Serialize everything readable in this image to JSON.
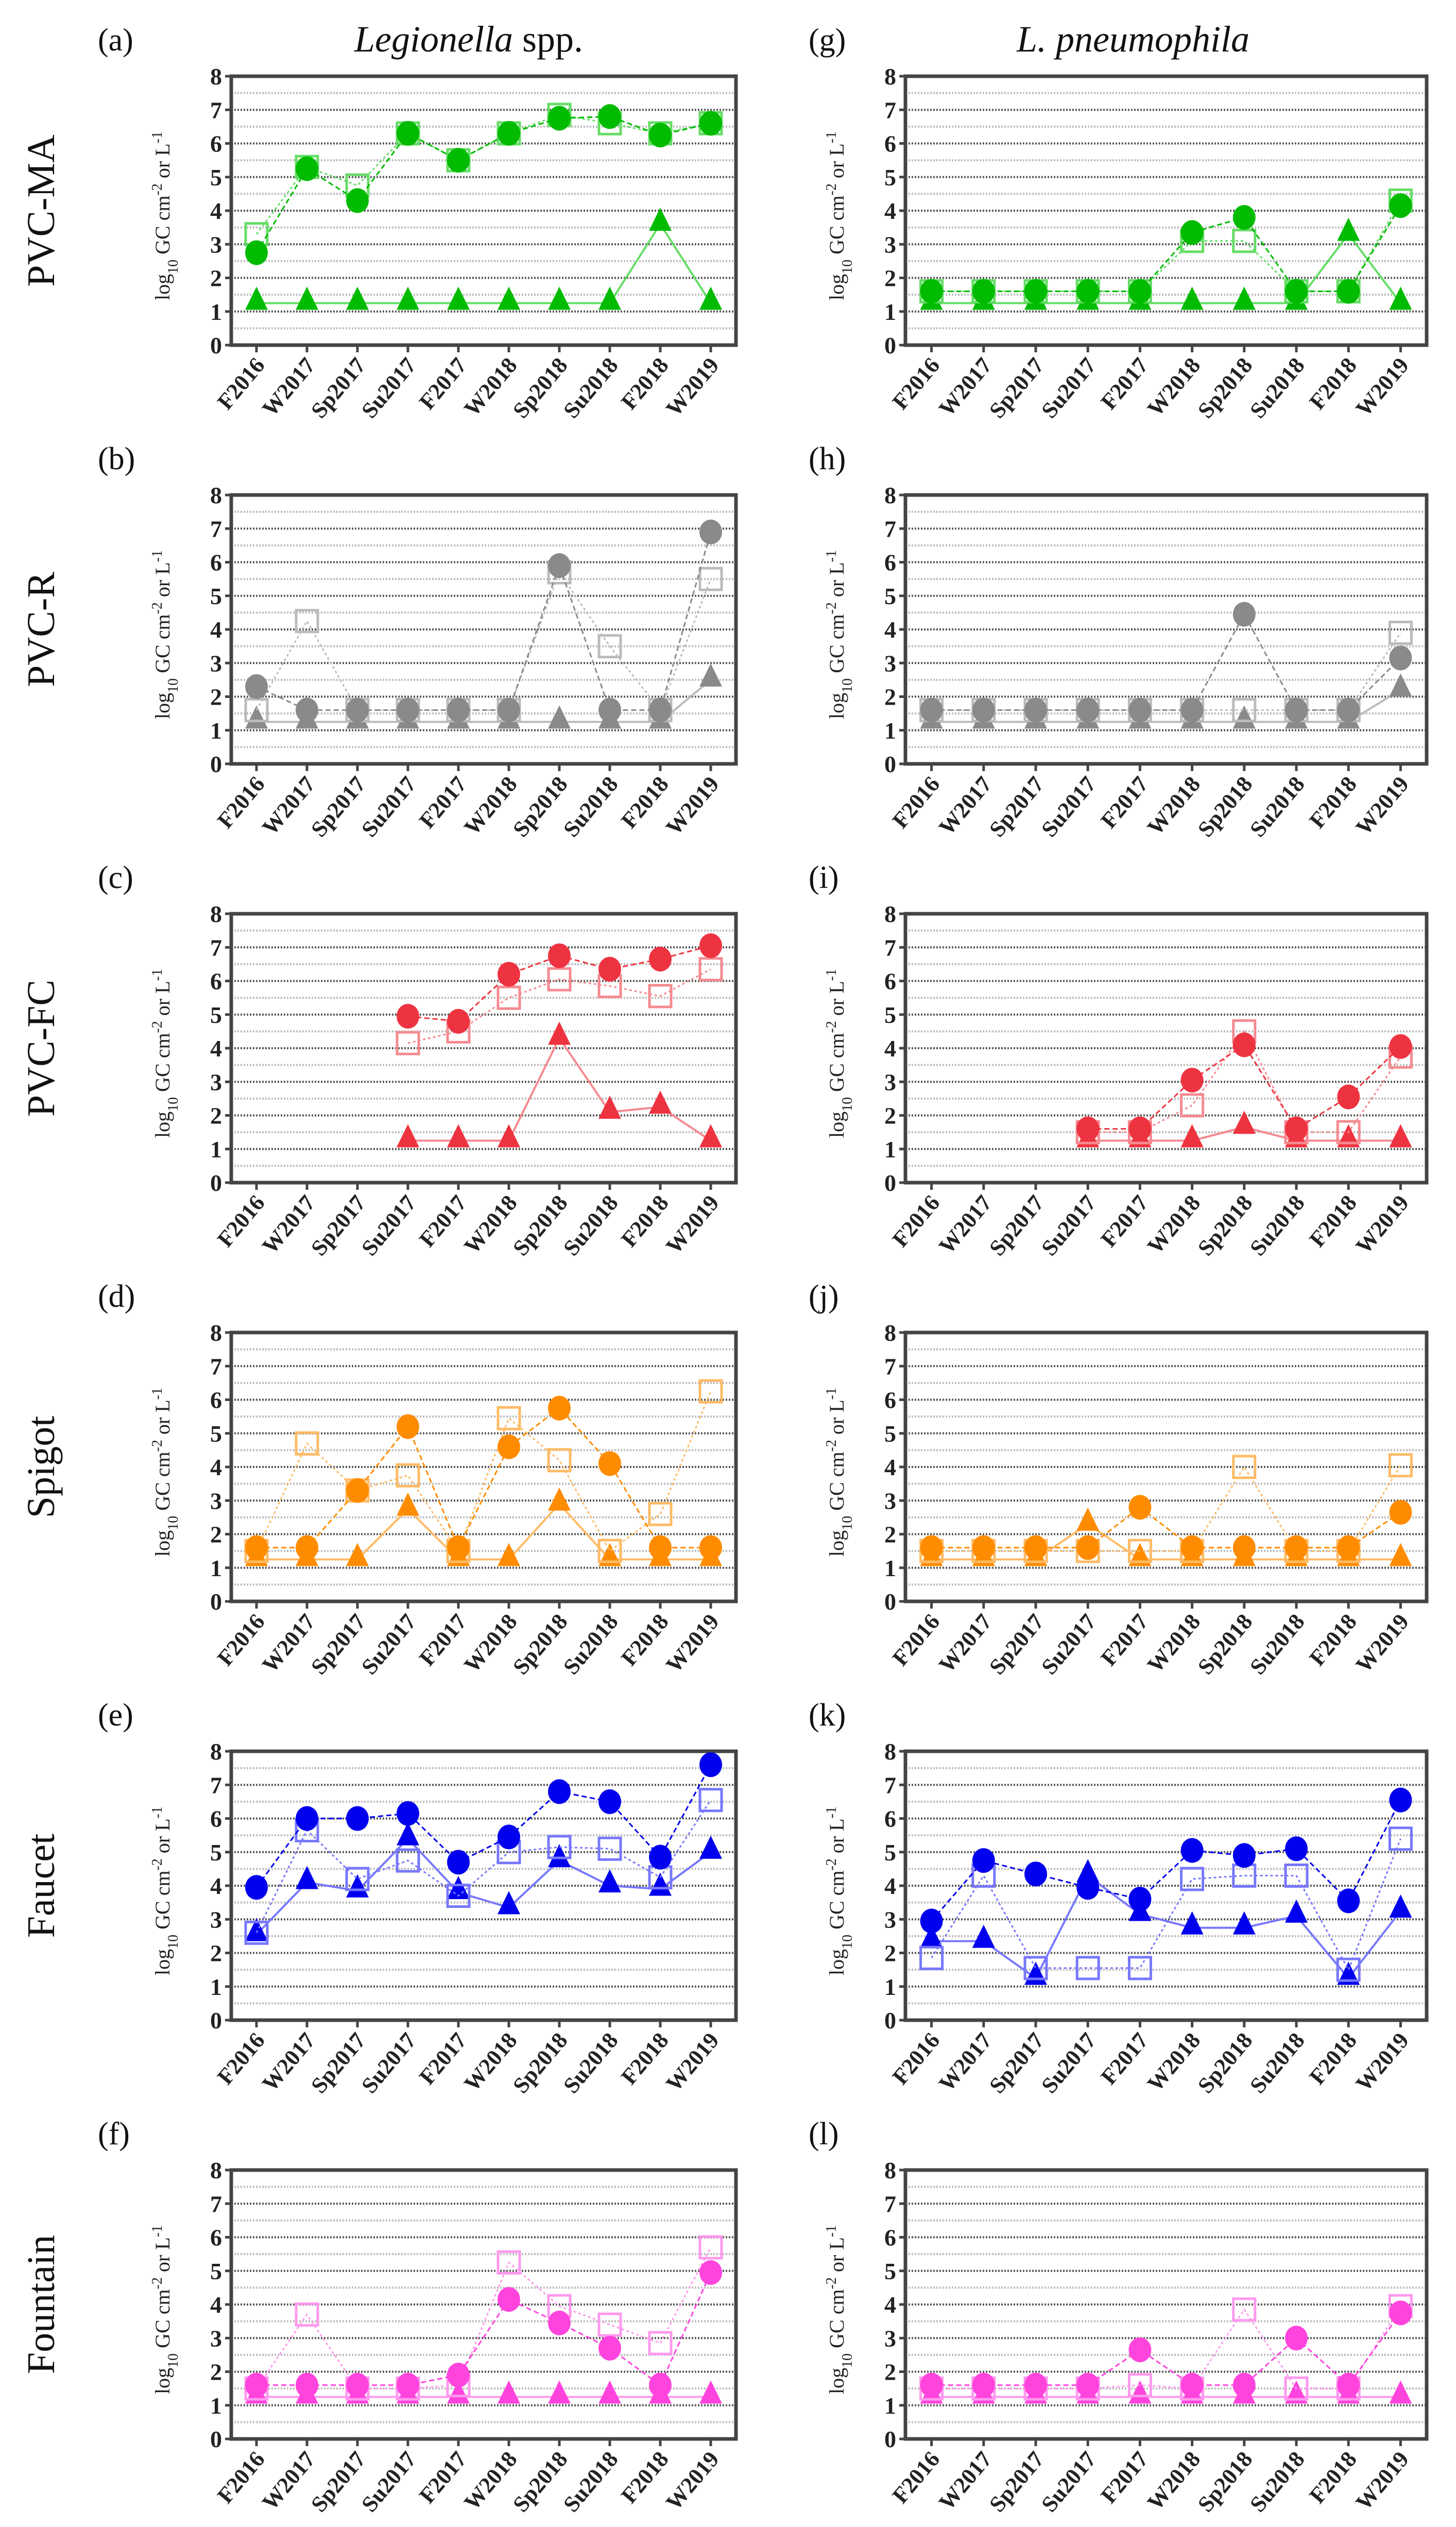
{
  "column_titles": [
    {
      "italic": "Legionella",
      "rest": " spp."
    },
    {
      "italic": "L. pneumophila",
      "rest": ""
    }
  ],
  "row_labels": [
    "PVC-MA",
    "PVC-R",
    "PVC-FC",
    "Spigot",
    "Faucet",
    "Fountain"
  ],
  "ylabel": {
    "base": "log",
    "sub": "10",
    "mid": " GC cm",
    "sup1": "-2",
    "mid2": " or L",
    "sup2": "-1"
  },
  "chart_data": [
    {
      "panel": "(a)",
      "type": "line",
      "row": "PVC-MA",
      "column": "Legionella spp.",
      "color": "#00bb00",
      "light": "#66dd66",
      "categories": [
        "F2016",
        "W2017",
        "Sp2017",
        "Su2017",
        "F2017",
        "W2018",
        "Sp2018",
        "Su2018",
        "F2018",
        "W2019"
      ],
      "ylim": [
        0,
        8
      ],
      "yticks": [
        0,
        1,
        2,
        3,
        4,
        5,
        6,
        7,
        8
      ],
      "series": [
        {
          "marker": "circle",
          "values": [
            2.75,
            5.25,
            4.3,
            6.3,
            5.5,
            6.3,
            6.75,
            6.8,
            6.25,
            6.6
          ]
        },
        {
          "marker": "square",
          "values": [
            3.3,
            5.3,
            4.75,
            6.3,
            5.5,
            6.3,
            6.85,
            6.6,
            6.3,
            6.6
          ]
        },
        {
          "marker": "triangle",
          "values": [
            1.25,
            1.25,
            1.25,
            1.25,
            1.25,
            1.25,
            1.25,
            1.25,
            3.6,
            1.25
          ]
        }
      ]
    },
    {
      "panel": "(b)",
      "type": "line",
      "row": "PVC-R",
      "column": "Legionella spp.",
      "color": "#8a8a8a",
      "light": "#bbbbbb",
      "categories": [
        "F2016",
        "W2017",
        "Sp2017",
        "Su2017",
        "F2017",
        "W2018",
        "Sp2018",
        "Su2018",
        "F2018",
        "W2019"
      ],
      "ylim": [
        0,
        8
      ],
      "yticks": [
        0,
        1,
        2,
        3,
        4,
        5,
        6,
        7,
        8
      ],
      "series": [
        {
          "marker": "circle",
          "values": [
            2.3,
            1.6,
            1.6,
            1.6,
            1.6,
            1.6,
            5.9,
            1.6,
            1.6,
            6.9
          ]
        },
        {
          "marker": "square",
          "values": [
            1.6,
            4.25,
            1.6,
            1.6,
            1.6,
            1.6,
            5.7,
            3.5,
            1.6,
            5.5
          ]
        },
        {
          "marker": "triangle",
          "values": [
            1.25,
            1.25,
            1.25,
            1.25,
            1.25,
            1.25,
            1.25,
            1.25,
            1.25,
            2.5
          ]
        }
      ]
    },
    {
      "panel": "(c)",
      "type": "line",
      "row": "PVC-FC",
      "column": "Legionella spp.",
      "color": "#ee3340",
      "light": "#f58a90",
      "categories": [
        "F2016",
        "W2017",
        "Sp2017",
        "Su2017",
        "F2017",
        "W2018",
        "Sp2018",
        "Su2018",
        "F2018",
        "W2019"
      ],
      "ylim": [
        0,
        8
      ],
      "yticks": [
        0,
        1,
        2,
        3,
        4,
        5,
        6,
        7,
        8
      ],
      "series": [
        {
          "marker": "circle",
          "values": [
            null,
            null,
            null,
            4.95,
            4.8,
            6.2,
            6.75,
            6.35,
            6.65,
            7.05
          ]
        },
        {
          "marker": "square",
          "values": [
            null,
            null,
            null,
            4.15,
            4.5,
            5.5,
            6.05,
            5.85,
            5.55,
            6.35
          ]
        },
        {
          "marker": "triangle",
          "values": [
            null,
            null,
            null,
            1.25,
            1.25,
            1.25,
            4.3,
            2.1,
            2.25,
            1.25
          ]
        }
      ]
    },
    {
      "panel": "(d)",
      "type": "line",
      "row": "Spigot",
      "column": "Legionella spp.",
      "color": "#ff8c00",
      "light": "#ffbb66",
      "categories": [
        "F2016",
        "W2017",
        "Sp2017",
        "Su2017",
        "F2017",
        "W2018",
        "Sp2018",
        "Su2018",
        "F2018",
        "W2019"
      ],
      "ylim": [
        0,
        8
      ],
      "yticks": [
        0,
        1,
        2,
        3,
        4,
        5,
        6,
        7,
        8
      ],
      "series": [
        {
          "marker": "circle",
          "values": [
            1.6,
            1.6,
            3.3,
            5.2,
            1.6,
            4.6,
            5.75,
            4.1,
            1.6,
            1.6
          ]
        },
        {
          "marker": "square",
          "values": [
            1.5,
            4.7,
            3.3,
            3.75,
            1.5,
            5.45,
            4.2,
            1.5,
            2.6,
            6.25
          ]
        },
        {
          "marker": "triangle",
          "values": [
            1.25,
            1.25,
            1.25,
            2.75,
            1.25,
            1.25,
            2.9,
            1.25,
            1.25,
            1.25
          ]
        }
      ]
    },
    {
      "panel": "(e)",
      "type": "line",
      "row": "Faucet",
      "column": "Legionella spp.",
      "color": "#0000ee",
      "light": "#7777ff",
      "categories": [
        "F2016",
        "W2017",
        "Sp2017",
        "Su2017",
        "F2017",
        "W2018",
        "Sp2018",
        "Su2018",
        "F2018",
        "W2019"
      ],
      "ylim": [
        0,
        8
      ],
      "yticks": [
        0,
        1,
        2,
        3,
        4,
        5,
        6,
        7,
        8
      ],
      "series": [
        {
          "marker": "circle",
          "values": [
            3.95,
            6.0,
            6.0,
            6.15,
            4.7,
            5.45,
            6.8,
            6.5,
            4.85,
            7.6
          ]
        },
        {
          "marker": "square",
          "values": [
            2.6,
            5.65,
            4.2,
            4.75,
            3.7,
            5.0,
            5.15,
            5.1,
            4.25,
            6.55
          ]
        },
        {
          "marker": "triangle",
          "values": [
            2.55,
            4.1,
            3.85,
            5.4,
            3.8,
            3.35,
            4.75,
            4.0,
            3.9,
            5.0
          ]
        }
      ]
    },
    {
      "panel": "(f)",
      "type": "line",
      "row": "Fountain",
      "column": "Legionella spp.",
      "color": "#ff44dd",
      "light": "#ff99ee",
      "categories": [
        "F2016",
        "W2017",
        "Sp2017",
        "Su2017",
        "F2017",
        "W2018",
        "Sp2018",
        "Su2018",
        "F2018",
        "W2019"
      ],
      "ylim": [
        0,
        8
      ],
      "yticks": [
        0,
        1,
        2,
        3,
        4,
        5,
        6,
        7,
        8
      ],
      "series": [
        {
          "marker": "circle",
          "values": [
            1.6,
            1.6,
            1.6,
            1.6,
            1.9,
            4.15,
            3.45,
            2.7,
            1.6,
            4.95
          ]
        },
        {
          "marker": "square",
          "values": [
            1.5,
            3.7,
            1.5,
            1.5,
            1.6,
            5.25,
            3.95,
            3.4,
            2.85,
            5.7
          ]
        },
        {
          "marker": "triangle",
          "values": [
            1.25,
            1.25,
            1.25,
            1.25,
            1.25,
            1.25,
            1.25,
            1.25,
            1.25,
            1.25
          ]
        }
      ]
    },
    {
      "panel": "(g)",
      "type": "line",
      "row": "PVC-MA",
      "column": "L. pneumophila",
      "color": "#00bb00",
      "light": "#66dd66",
      "categories": [
        "F2016",
        "W2017",
        "Sp2017",
        "Su2017",
        "F2017",
        "W2018",
        "Sp2018",
        "Su2018",
        "F2018",
        "W2019"
      ],
      "ylim": [
        0,
        8
      ],
      "yticks": [
        0,
        1,
        2,
        3,
        4,
        5,
        6,
        7,
        8
      ],
      "series": [
        {
          "marker": "circle",
          "values": [
            1.6,
            1.6,
            1.6,
            1.6,
            1.6,
            3.35,
            3.8,
            1.6,
            1.6,
            4.15
          ]
        },
        {
          "marker": "square",
          "values": [
            1.6,
            1.6,
            1.6,
            1.6,
            1.6,
            3.1,
            3.1,
            1.6,
            1.6,
            4.3
          ]
        },
        {
          "marker": "triangle",
          "values": [
            1.25,
            1.25,
            1.25,
            1.25,
            1.25,
            1.25,
            1.25,
            1.25,
            3.3,
            1.25
          ]
        }
      ]
    },
    {
      "panel": "(h)",
      "type": "line",
      "row": "PVC-R",
      "column": "L. pneumophila",
      "color": "#8a8a8a",
      "light": "#bbbbbb",
      "categories": [
        "F2016",
        "W2017",
        "Sp2017",
        "Su2017",
        "F2017",
        "W2018",
        "Sp2018",
        "Su2018",
        "F2018",
        "W2019"
      ],
      "ylim": [
        0,
        8
      ],
      "yticks": [
        0,
        1,
        2,
        3,
        4,
        5,
        6,
        7,
        8
      ],
      "series": [
        {
          "marker": "circle",
          "values": [
            1.6,
            1.6,
            1.6,
            1.6,
            1.6,
            1.6,
            4.45,
            1.6,
            1.6,
            3.15
          ]
        },
        {
          "marker": "square",
          "values": [
            1.6,
            1.6,
            1.6,
            1.6,
            1.6,
            1.6,
            1.6,
            1.6,
            1.6,
            3.9
          ]
        },
        {
          "marker": "triangle",
          "values": [
            1.25,
            1.25,
            1.25,
            1.25,
            1.25,
            1.25,
            1.25,
            1.25,
            1.25,
            2.2
          ]
        }
      ]
    },
    {
      "panel": "(i)",
      "type": "line",
      "row": "PVC-FC",
      "column": "L. pneumophila",
      "color": "#ee3340",
      "light": "#f58a90",
      "categories": [
        "F2016",
        "W2017",
        "Sp2017",
        "Su2017",
        "F2017",
        "W2018",
        "Sp2018",
        "Su2018",
        "F2018",
        "W2019"
      ],
      "ylim": [
        0,
        8
      ],
      "yticks": [
        0,
        1,
        2,
        3,
        4,
        5,
        6,
        7,
        8
      ],
      "series": [
        {
          "marker": "circle",
          "values": [
            null,
            null,
            null,
            1.6,
            1.6,
            3.05,
            4.1,
            1.6,
            2.55,
            4.05
          ]
        },
        {
          "marker": "square",
          "values": [
            null,
            null,
            null,
            1.5,
            1.5,
            2.3,
            4.5,
            1.5,
            1.5,
            3.75
          ]
        },
        {
          "marker": "triangle",
          "values": [
            null,
            null,
            null,
            1.25,
            1.25,
            1.25,
            1.65,
            1.25,
            1.25,
            1.25
          ]
        }
      ]
    },
    {
      "panel": "(j)",
      "type": "line",
      "row": "Spigot",
      "column": "L. pneumophila",
      "color": "#ff8c00",
      "light": "#ffbb66",
      "categories": [
        "F2016",
        "W2017",
        "Sp2017",
        "Su2017",
        "F2017",
        "W2018",
        "Sp2018",
        "Su2018",
        "F2018",
        "W2019"
      ],
      "ylim": [
        0,
        8
      ],
      "yticks": [
        0,
        1,
        2,
        3,
        4,
        5,
        6,
        7,
        8
      ],
      "series": [
        {
          "marker": "circle",
          "values": [
            1.6,
            1.6,
            1.6,
            1.6,
            2.8,
            1.6,
            1.6,
            1.6,
            1.6,
            2.65
          ]
        },
        {
          "marker": "square",
          "values": [
            1.5,
            1.5,
            1.5,
            1.5,
            1.5,
            1.5,
            4.0,
            1.5,
            1.5,
            4.05
          ]
        },
        {
          "marker": "triangle",
          "values": [
            1.25,
            1.25,
            1.25,
            2.3,
            1.25,
            1.25,
            1.25,
            1.25,
            1.25,
            1.25
          ]
        }
      ]
    },
    {
      "panel": "(k)",
      "type": "line",
      "row": "Faucet",
      "column": "L. pneumophila",
      "color": "#0000ee",
      "light": "#7777ff",
      "categories": [
        "F2016",
        "W2017",
        "Sp2017",
        "Su2017",
        "F2017",
        "W2018",
        "Sp2018",
        "Su2018",
        "F2018",
        "W2019"
      ],
      "ylim": [
        0,
        8
      ],
      "yticks": [
        0,
        1,
        2,
        3,
        4,
        5,
        6,
        7,
        8
      ],
      "series": [
        {
          "marker": "circle",
          "values": [
            2.95,
            4.75,
            4.35,
            3.95,
            3.6,
            5.05,
            4.9,
            5.1,
            3.55,
            6.55
          ]
        },
        {
          "marker": "square",
          "values": [
            1.85,
            4.3,
            1.55,
            1.55,
            1.55,
            4.2,
            4.3,
            4.3,
            1.5,
            5.4
          ]
        },
        {
          "marker": "triangle",
          "values": [
            2.35,
            2.35,
            1.25,
            4.3,
            3.15,
            2.75,
            2.75,
            3.1,
            1.25,
            3.25
          ]
        }
      ]
    },
    {
      "panel": "(l)",
      "type": "line",
      "row": "Fountain",
      "column": "L. pneumophila",
      "color": "#ff44dd",
      "light": "#ff99ee",
      "categories": [
        "F2016",
        "W2017",
        "Sp2017",
        "Su2017",
        "F2017",
        "W2018",
        "Sp2018",
        "Su2018",
        "F2018",
        "W2019"
      ],
      "ylim": [
        0,
        8
      ],
      "yticks": [
        0,
        1,
        2,
        3,
        4,
        5,
        6,
        7,
        8
      ],
      "series": [
        {
          "marker": "circle",
          "values": [
            1.6,
            1.6,
            1.6,
            1.6,
            2.65,
            1.6,
            1.6,
            3.0,
            1.6,
            3.75
          ]
        },
        {
          "marker": "square",
          "values": [
            1.5,
            1.5,
            1.5,
            1.5,
            1.6,
            1.5,
            3.85,
            1.5,
            1.5,
            3.95
          ]
        },
        {
          "marker": "triangle",
          "values": [
            1.25,
            1.25,
            1.25,
            1.25,
            1.25,
            1.25,
            1.25,
            1.25,
            1.25,
            1.25
          ]
        }
      ]
    }
  ]
}
